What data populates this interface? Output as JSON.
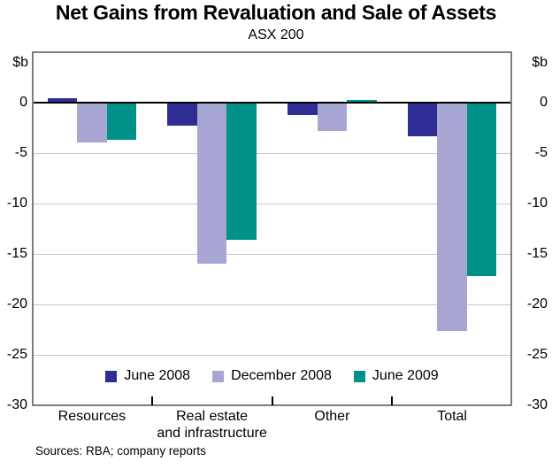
{
  "header": {
    "title": "Net Gains from Revaluation and Sale of Assets",
    "subtitle": "ASX 200"
  },
  "chart_data": {
    "type": "bar",
    "categories": [
      "Resources",
      "Real estate\nand infrastructure",
      "Other",
      "Total"
    ],
    "series": [
      {
        "name": "June 2008",
        "color": "#2f2d93",
        "values": [
          0.4,
          -2.3,
          -1.2,
          -3.3
        ]
      },
      {
        "name": "December 2008",
        "color": "#a7a6d3",
        "values": [
          -3.9,
          -16.0,
          -2.8,
          -22.6
        ]
      },
      {
        "name": "June 2009",
        "color": "#009289",
        "values": [
          -3.7,
          -13.6,
          0.3,
          -17.2
        ]
      }
    ],
    "unit_label": "$b",
    "unit_label_sides": [
      "left",
      "right"
    ],
    "yticks": [
      0,
      -5,
      -10,
      -15,
      -20,
      -25,
      -30
    ],
    "ylim": [
      -30,
      5
    ],
    "grid": true,
    "legend_position": "bottom-inside"
  },
  "footer": {
    "sources": "Sources: RBA; company reports"
  },
  "colors": {
    "june_2008": "#2f2d93",
    "december_2008": "#a7a6d3",
    "june_2009": "#009289",
    "gridline": "#c9c9c9",
    "frame": "#7d7d7d",
    "zero_line": "#000000"
  }
}
